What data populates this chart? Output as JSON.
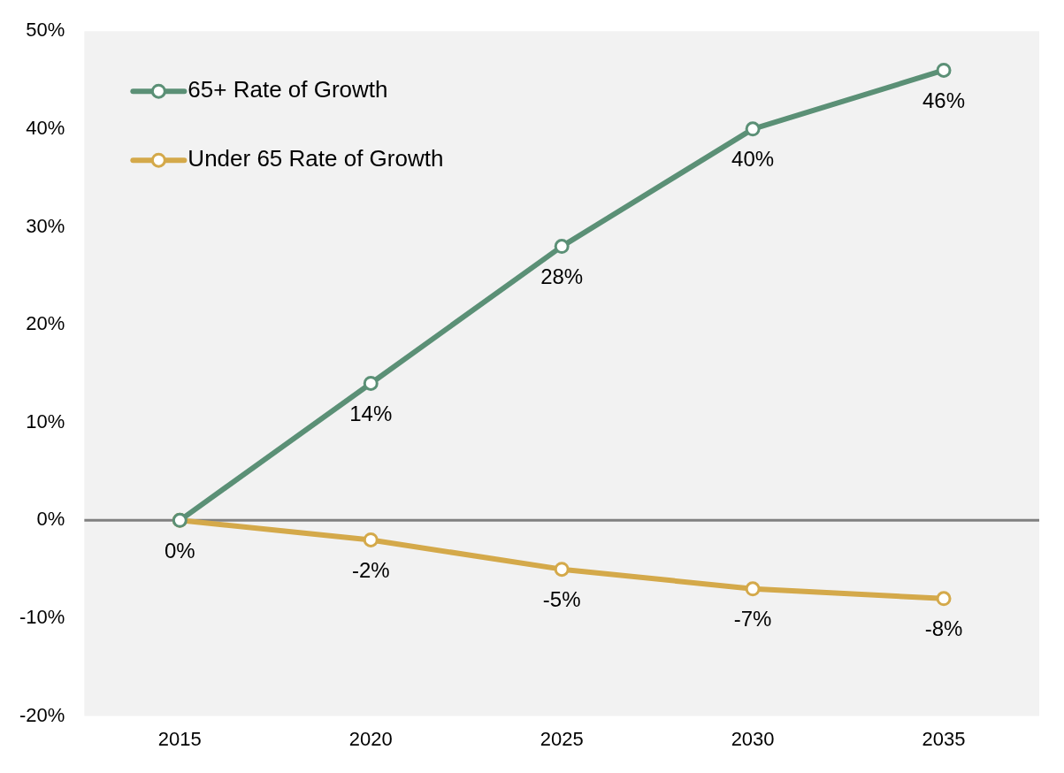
{
  "chart_data": {
    "type": "line",
    "categories": [
      "2015",
      "2020",
      "2025",
      "2030",
      "2035"
    ],
    "series": [
      {
        "name": "65+ Rate of Growth",
        "color": "#5b9076",
        "values": [
          0,
          14,
          28,
          40,
          46
        ],
        "value_labels": [
          null,
          "14%",
          "28%",
          "40%",
          "46%"
        ]
      },
      {
        "name": "Under 65 Rate of Growth",
        "color": "#d4a94a",
        "values": [
          0,
          -2,
          -5,
          -7,
          -8
        ],
        "value_labels": [
          "0%",
          "-2%",
          "-5%",
          "-7%",
          "-8%"
        ]
      }
    ],
    "ylim": [
      -20,
      50
    ],
    "yticks": [
      {
        "value": -20,
        "label": "-20%"
      },
      {
        "value": -10,
        "label": "-10%"
      },
      {
        "value": 0,
        "label": "0%"
      },
      {
        "value": 10,
        "label": "10%"
      },
      {
        "value": 20,
        "label": "20%"
      },
      {
        "value": 30,
        "label": "30%"
      },
      {
        "value": 40,
        "label": "40%"
      },
      {
        "value": 50,
        "label": "50%"
      }
    ],
    "ref_lines": [
      {
        "axis": "y",
        "value": 0,
        "color": "#808080"
      }
    ],
    "grid": false,
    "legend": "top left",
    "marker": "circle",
    "line_style": "solid"
  }
}
